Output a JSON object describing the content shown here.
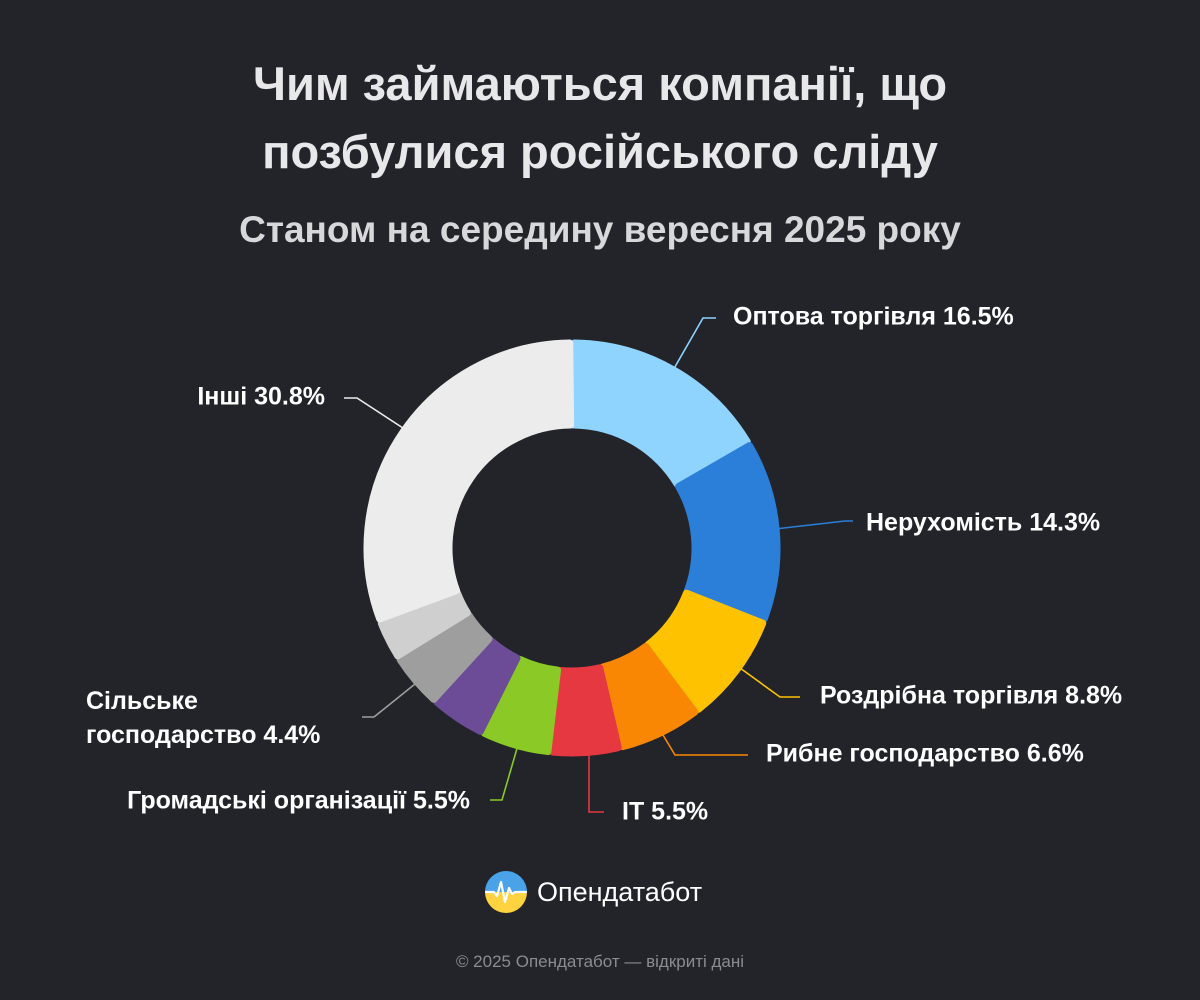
{
  "title_line1": "Чим займаються компанії, що",
  "title_line2": "позбулися російського сліду",
  "subtitle": "Станом на середину вересня 2025 року",
  "brand": {
    "name": "Опендатабот",
    "logo_icon": "opendatabot-logo-icon"
  },
  "footer": "© 2025 Опендатабот — відкриті дані",
  "colors": {
    "background": "#222429",
    "label_text": "#ffffff"
  },
  "chart_data": {
    "type": "pie",
    "variant": "donut",
    "slices": [
      {
        "label": "Оптова торгівля",
        "value": 16.5,
        "display": "Оптова торгівля 16.5%",
        "color": "#8fd3ff"
      },
      {
        "label": "Нерухомість",
        "value": 14.3,
        "display": "Нерухомість 14.3%",
        "color": "#2b7fd9"
      },
      {
        "label": "Роздрібна торгівля",
        "value": 8.8,
        "display": "Роздрібна торгівля 8.8%",
        "color": "#ffc200"
      },
      {
        "label": "Рибне господарство",
        "value": 6.6,
        "display": "Рибне господарство 6.6%",
        "color": "#fa8703"
      },
      {
        "label": "IT",
        "value": 5.5,
        "display": "IT 5.5%",
        "color": "#e53841"
      },
      {
        "label": "Громадські організації",
        "value": 5.5,
        "display": "Громадські організації 5.5%",
        "color": "#8ac926"
      },
      {
        "label": "",
        "value": 4.4,
        "display": "",
        "color": "#6c4c96"
      },
      {
        "label": "Сільське господарство",
        "value": 4.4,
        "display_lines": [
          "Сільське",
          "господарство 4.4%"
        ],
        "color": "#9e9e9e"
      },
      {
        "label": "",
        "value": 3.2,
        "display": "",
        "color": "#cfcfcf"
      },
      {
        "label": "Інші",
        "value": 30.8,
        "display": "Інші 30.8%",
        "color": "#ececec"
      }
    ]
  }
}
